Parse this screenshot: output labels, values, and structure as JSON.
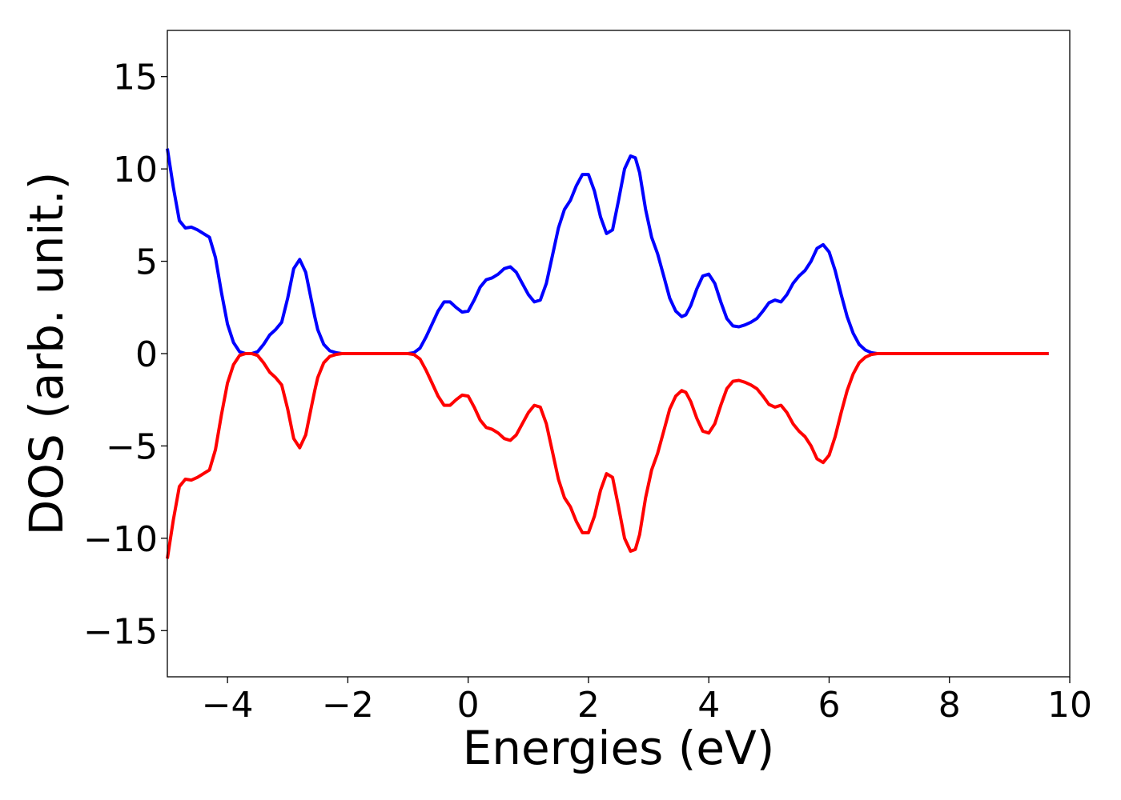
{
  "chart_data": {
    "type": "line",
    "title": "",
    "xlabel": "Energies (eV)",
    "ylabel": "DOS (arb. unit.)",
    "xlim": [
      -5,
      10
    ],
    "ylim": [
      -17.5,
      17.5
    ],
    "xticks": [
      -4,
      -2,
      0,
      2,
      4,
      6,
      8,
      10
    ],
    "yticks": [
      -15,
      -10,
      -5,
      0,
      5,
      10,
      15
    ],
    "xtick_labels": [
      "−4",
      "−2",
      "0",
      "2",
      "4",
      "6",
      "8",
      "10"
    ],
    "ytick_labels": [
      "−15",
      "−10",
      "−5",
      "0",
      "5",
      "10",
      "15"
    ],
    "grid": false,
    "legend": "none",
    "series": [
      {
        "color": "#0000ff",
        "x": [
          -5.0,
          -4.9,
          -4.8,
          -4.7,
          -4.6,
          -4.5,
          -4.4,
          -4.3,
          -4.2,
          -4.1,
          -4.0,
          -3.9,
          -3.8,
          -3.7,
          -3.6,
          -3.5,
          -3.4,
          -3.3,
          -3.2,
          -3.1,
          -3.0,
          -2.9,
          -2.8,
          -2.7,
          -2.6,
          -2.55,
          -2.5,
          -2.4,
          -2.3,
          -2.2,
          -2.1,
          -2.0,
          -1.9,
          -1.8,
          -1.5,
          -1.0,
          -0.9,
          -0.8,
          -0.7,
          -0.6,
          -0.5,
          -0.4,
          -0.3,
          -0.2,
          -0.1,
          0.0,
          0.1,
          0.2,
          0.3,
          0.4,
          0.5,
          0.6,
          0.7,
          0.8,
          0.9,
          1.0,
          1.1,
          1.2,
          1.3,
          1.4,
          1.5,
          1.6,
          1.7,
          1.8,
          1.9,
          2.0,
          2.1,
          2.2,
          2.3,
          2.4,
          2.5,
          2.6,
          2.7,
          2.78,
          2.85,
          2.95,
          3.05,
          3.15,
          3.25,
          3.35,
          3.45,
          3.55,
          3.62,
          3.7,
          3.8,
          3.9,
          4.0,
          4.1,
          4.2,
          4.3,
          4.4,
          4.5,
          4.6,
          4.7,
          4.8,
          4.9,
          5.0,
          5.1,
          5.2,
          5.3,
          5.4,
          5.5,
          5.6,
          5.7,
          5.8,
          5.9,
          6.0,
          6.1,
          6.2,
          6.3,
          6.4,
          6.5,
          6.6,
          6.7,
          6.8,
          6.9,
          7.0,
          7.2,
          8.0,
          9.0,
          9.65
        ],
        "y": [
          11.1,
          9.0,
          7.2,
          6.8,
          6.85,
          6.7,
          6.5,
          6.3,
          5.2,
          3.3,
          1.6,
          0.6,
          0.1,
          0.0,
          0.0,
          0.1,
          0.5,
          1.0,
          1.3,
          1.7,
          3.0,
          4.6,
          5.1,
          4.4,
          2.8,
          2.0,
          1.3,
          0.5,
          0.15,
          0.05,
          0.0,
          0.0,
          0.0,
          0.0,
          0.0,
          0.0,
          0.05,
          0.3,
          0.9,
          1.6,
          2.3,
          2.8,
          2.8,
          2.5,
          2.25,
          2.3,
          2.9,
          3.6,
          4.0,
          4.1,
          4.3,
          4.6,
          4.7,
          4.4,
          3.8,
          3.2,
          2.8,
          2.9,
          3.8,
          5.3,
          6.8,
          7.8,
          8.3,
          9.1,
          9.7,
          9.7,
          8.8,
          7.4,
          6.5,
          6.7,
          8.3,
          10.0,
          10.7,
          10.6,
          9.8,
          7.8,
          6.3,
          5.4,
          4.2,
          3.0,
          2.3,
          2.0,
          2.1,
          2.6,
          3.5,
          4.2,
          4.3,
          3.8,
          2.8,
          1.9,
          1.5,
          1.45,
          1.55,
          1.7,
          1.9,
          2.3,
          2.75,
          2.9,
          2.8,
          3.2,
          3.8,
          4.2,
          4.5,
          5.0,
          5.7,
          5.9,
          5.5,
          4.5,
          3.2,
          2.0,
          1.1,
          0.5,
          0.2,
          0.05,
          0.0,
          0.0,
          0.0,
          0.0,
          0.0,
          0.0,
          0.0
        ]
      },
      {
        "color": "#ff0000",
        "x": [
          -5.0,
          -4.9,
          -4.8,
          -4.7,
          -4.6,
          -4.5,
          -4.4,
          -4.3,
          -4.2,
          -4.1,
          -4.0,
          -3.9,
          -3.8,
          -3.7,
          -3.6,
          -3.5,
          -3.4,
          -3.3,
          -3.2,
          -3.1,
          -3.0,
          -2.9,
          -2.8,
          -2.7,
          -2.6,
          -2.55,
          -2.5,
          -2.4,
          -2.3,
          -2.2,
          -2.1,
          -2.0,
          -1.9,
          -1.8,
          -1.5,
          -1.0,
          -0.9,
          -0.8,
          -0.7,
          -0.6,
          -0.5,
          -0.4,
          -0.3,
          -0.2,
          -0.1,
          0.0,
          0.1,
          0.2,
          0.3,
          0.4,
          0.5,
          0.6,
          0.7,
          0.8,
          0.9,
          1.0,
          1.1,
          1.2,
          1.3,
          1.4,
          1.5,
          1.6,
          1.7,
          1.8,
          1.9,
          2.0,
          2.1,
          2.2,
          2.3,
          2.4,
          2.5,
          2.6,
          2.7,
          2.78,
          2.85,
          2.95,
          3.05,
          3.15,
          3.25,
          3.35,
          3.45,
          3.55,
          3.62,
          3.7,
          3.8,
          3.9,
          4.0,
          4.1,
          4.2,
          4.3,
          4.4,
          4.5,
          4.6,
          4.7,
          4.8,
          4.9,
          5.0,
          5.1,
          5.2,
          5.3,
          5.4,
          5.5,
          5.6,
          5.7,
          5.8,
          5.9,
          6.0,
          6.1,
          6.2,
          6.3,
          6.4,
          6.5,
          6.6,
          6.7,
          6.8,
          6.9,
          7.0,
          7.2,
          8.0,
          9.0,
          9.65
        ],
        "y": [
          -11.1,
          -9.0,
          -7.2,
          -6.8,
          -6.85,
          -6.7,
          -6.5,
          -6.3,
          -5.2,
          -3.3,
          -1.6,
          -0.6,
          -0.1,
          0.0,
          0.0,
          -0.1,
          -0.5,
          -1.0,
          -1.3,
          -1.7,
          -3.0,
          -4.6,
          -5.1,
          -4.4,
          -2.8,
          -2.0,
          -1.3,
          -0.5,
          -0.15,
          -0.05,
          0.0,
          0.0,
          0.0,
          0.0,
          0.0,
          0.0,
          -0.05,
          -0.3,
          -0.9,
          -1.6,
          -2.3,
          -2.8,
          -2.8,
          -2.5,
          -2.25,
          -2.3,
          -2.9,
          -3.6,
          -4.0,
          -4.1,
          -4.3,
          -4.6,
          -4.7,
          -4.4,
          -3.8,
          -3.2,
          -2.8,
          -2.9,
          -3.8,
          -5.3,
          -6.8,
          -7.8,
          -8.3,
          -9.1,
          -9.7,
          -9.7,
          -8.8,
          -7.4,
          -6.5,
          -6.7,
          -8.3,
          -10.0,
          -10.7,
          -10.6,
          -9.8,
          -7.8,
          -6.3,
          -5.4,
          -4.2,
          -3.0,
          -2.3,
          -2.0,
          -2.1,
          -2.6,
          -3.5,
          -4.2,
          -4.3,
          -3.8,
          -2.8,
          -1.9,
          -1.5,
          -1.45,
          -1.55,
          -1.7,
          -1.9,
          -2.3,
          -2.75,
          -2.9,
          -2.8,
          -3.2,
          -3.8,
          -4.2,
          -4.5,
          -5.0,
          -5.7,
          -5.9,
          -5.5,
          -4.5,
          -3.2,
          -2.0,
          -1.1,
          -0.5,
          -0.2,
          -0.05,
          0.0,
          0.0,
          0.0,
          0.0,
          0.0,
          0.0,
          0.0
        ]
      }
    ]
  }
}
